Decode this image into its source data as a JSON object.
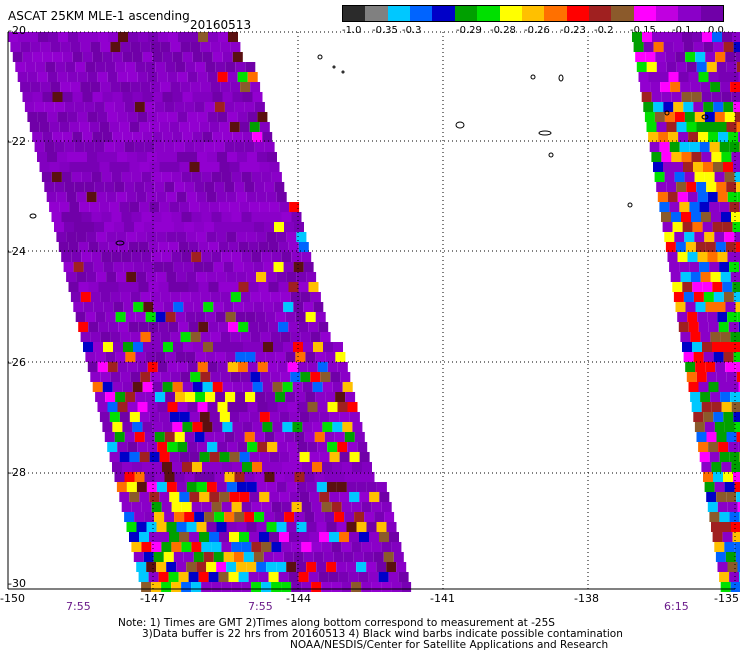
{
  "header": {
    "title": "ASCAT 25KM MLE-1 ascending",
    "date": "20160513"
  },
  "legend": {
    "labels": [
      "-1.0",
      "-0.35",
      "-0.3",
      "-0.29",
      "-0.28",
      "-0.26",
      "-0.23",
      "-0.2",
      "-0.15",
      "-0.1",
      "0.0"
    ],
    "colors": [
      "#2b2b2b",
      "#808080",
      "#00c8ff",
      "#0064ff",
      "#0000c8",
      "#00a000",
      "#00e000",
      "#ffff00",
      "#ffc000",
      "#ff7000",
      "#ff0000",
      "#a02020",
      "#8b5a2b",
      "#ff00ff",
      "#c000e0",
      "#8a00c8",
      "#7000a8"
    ]
  },
  "map": {
    "lat_labels": [
      "-20",
      "-22",
      "-24",
      "-26",
      "-28",
      "-30"
    ],
    "lon_labels": [
      "-150",
      "-147",
      "-144",
      "-141",
      "-138",
      "-135"
    ],
    "pass_times": [
      "7:55",
      "7:55",
      "6:15"
    ]
  },
  "notes": [
    "Note: 1) Times are GMT 2)Times along bottom correspond to measurement at -25S",
    "3)Data buffer is 22 hrs from 20160513 4) Black wind barbs indicate possible contamination",
    "NOAA/NESDIS/Center for Satellite Applications and Research"
  ]
}
